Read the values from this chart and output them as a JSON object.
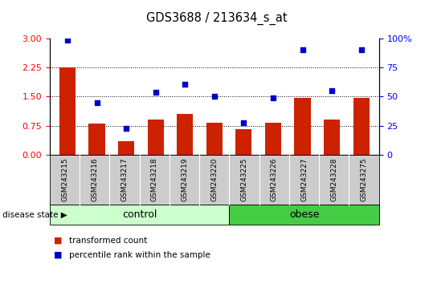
{
  "title": "GDS3688 / 213634_s_at",
  "samples": [
    "GSM243215",
    "GSM243216",
    "GSM243217",
    "GSM243218",
    "GSM243219",
    "GSM243220",
    "GSM243225",
    "GSM243226",
    "GSM243227",
    "GSM243228",
    "GSM243275"
  ],
  "bar_values": [
    2.25,
    0.8,
    0.35,
    0.9,
    1.05,
    0.82,
    0.65,
    0.82,
    1.47,
    0.9,
    1.47
  ],
  "dot_values_pct": [
    98.5,
    45,
    22.5,
    53.5,
    60.5,
    50,
    27.5,
    49,
    90.5,
    55,
    90.5
  ],
  "bar_color": "#cc2200",
  "dot_color": "#0000cc",
  "ylim_left": [
    0,
    3
  ],
  "ylim_right": [
    0,
    100
  ],
  "yticks_left": [
    0,
    0.75,
    1.5,
    2.25,
    3
  ],
  "yticks_right": [
    0,
    25,
    50,
    75,
    100
  ],
  "ytick_labels_right": [
    "0",
    "25",
    "50",
    "75",
    "100%"
  ],
  "groups": [
    {
      "label": "control",
      "indices": [
        0,
        1,
        2,
        3,
        4,
        5
      ],
      "color": "#ccffcc"
    },
    {
      "label": "obese",
      "indices": [
        6,
        7,
        8,
        9,
        10
      ],
      "color": "#44cc44"
    }
  ],
  "disease_state_label": "disease state",
  "legend_bar_label": "transformed count",
  "legend_dot_label": "percentile rank within the sample",
  "tick_bg_color": "#cccccc",
  "tick_sep_color": "#ffffff"
}
